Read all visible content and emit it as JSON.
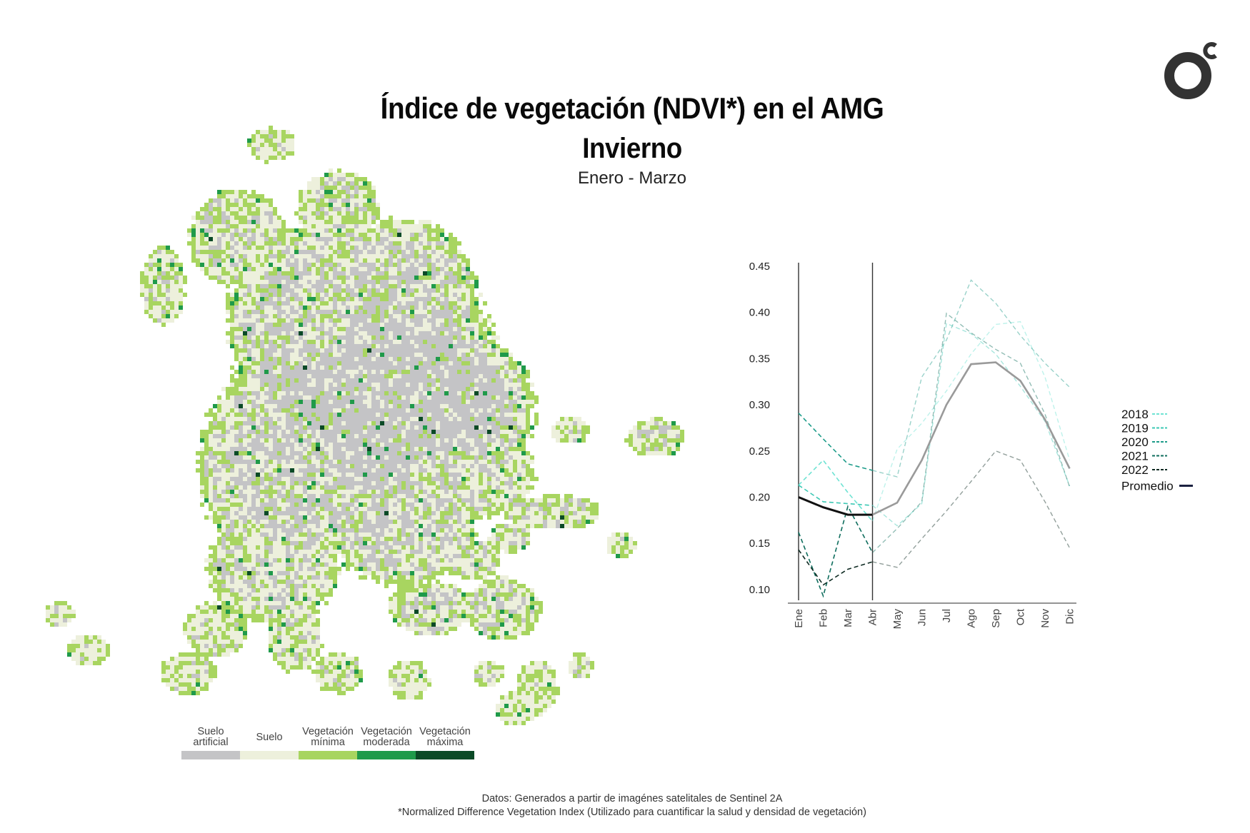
{
  "header": {
    "title": "Índice de vegetación (NDVI*) en el AMG",
    "season": "Invierno",
    "period": "Enero - Marzo"
  },
  "logo": {
    "name": "oc-logo-icon",
    "color": "#333333"
  },
  "map_legend": {
    "items": [
      {
        "label_line1": "Suelo",
        "label_line2": "artificial",
        "color": "#c4c4c6"
      },
      {
        "label_line1": "Suelo",
        "label_line2": "",
        "color": "#edf0dc"
      },
      {
        "label_line1": "Vegetación",
        "label_line2": "mínima",
        "color": "#a8d560"
      },
      {
        "label_line1": "Vegetación",
        "label_line2": "moderada",
        "color": "#1f9a4a"
      },
      {
        "label_line1": "Vegetación",
        "label_line2": "máxima",
        "color": "#0b4a26"
      }
    ]
  },
  "chart_data": {
    "type": "line",
    "title": "",
    "xlabel": "",
    "ylabel": "",
    "categories": [
      "Ene",
      "Feb",
      "Mar",
      "Abr",
      "May",
      "Jun",
      "Jul",
      "Ago",
      "Sep",
      "Oct",
      "Nov",
      "Dic"
    ],
    "ylim": [
      0.09,
      0.45
    ],
    "yticks": [
      "0.45",
      "0.40",
      "0.35",
      "0.30",
      "0.25",
      "0.20",
      "0.15",
      "0.10"
    ],
    "ytick_values": [
      0.45,
      0.4,
      0.35,
      0.3,
      0.25,
      0.2,
      0.15,
      0.1
    ],
    "highlight_range": [
      "Ene",
      "Abr"
    ],
    "legend_position": "right",
    "series": [
      {
        "name": "2018",
        "style": "dashed",
        "color": "#6fe3d3",
        "values": [
          0.213,
          0.24,
          0.205,
          0.174,
          0.252,
          0.28,
          0.315,
          0.355,
          0.387,
          0.39,
          0.33,
          0.24
        ]
      },
      {
        "name": "2019",
        "style": "dashed",
        "color": "#3cc8b4",
        "values": [
          0.213,
          0.195,
          0.193,
          0.191,
          0.169,
          0.193,
          0.388,
          0.377,
          0.355,
          0.32,
          0.282,
          0.212
        ]
      },
      {
        "name": "2020",
        "style": "dashed",
        "color": "#1e9c8a",
        "values": [
          0.291,
          0.263,
          0.236,
          0.229,
          0.222,
          0.33,
          0.37,
          0.435,
          0.41,
          0.375,
          0.345,
          0.319
        ]
      },
      {
        "name": "2021",
        "style": "dashed",
        "color": "#0f6e5e",
        "values": [
          0.162,
          0.093,
          0.19,
          0.14,
          0.166,
          0.195,
          0.399,
          0.378,
          0.36,
          0.345,
          0.29,
          0.211
        ]
      },
      {
        "name": "2022",
        "style": "dashed",
        "color": "#0e2a22",
        "values": [
          0.143,
          0.105,
          0.122,
          0.13,
          0.124,
          0.155,
          0.185,
          0.217,
          0.25,
          0.24,
          0.195,
          0.145
        ]
      },
      {
        "name": "Promedio",
        "style": "solid",
        "color": "#111111",
        "legend_color": "#1b2140",
        "faded_color": "#9a9a9a",
        "values": [
          0.2,
          0.189,
          0.181,
          0.181,
          0.194,
          0.24,
          0.3,
          0.344,
          0.346,
          0.326,
          0.284,
          0.231
        ]
      }
    ]
  },
  "footer": {
    "source": "Datos: Generados a partir de imagénes satelitales de Sentinel 2A",
    "note": "*Normalized Difference Vegetation Index (Utilizado para cuantificar la salud y densidad de vegetación)"
  }
}
